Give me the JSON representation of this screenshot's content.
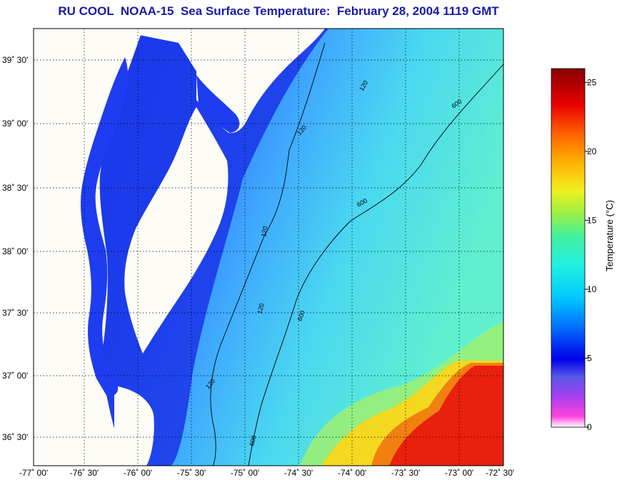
{
  "title": "RU COOL  NOAA-15  Sea Surface Temperature:  February 28, 2004 1119 GMT",
  "map": {
    "lat_labels": [
      "39˚ 30'",
      "39˚ 00'",
      "38˚ 30'",
      "38˚ 00'",
      "37˚ 30'",
      "37˚ 00'",
      "36˚ 30'"
    ],
    "lon_labels": [
      "-77˚ 00'",
      "-76˚ 30'",
      "-76˚ 00'",
      "-75˚ 30'",
      "-75˚ 00'",
      "-74˚ 30'",
      "-74˚ 00'",
      "-73˚ 30'",
      "-73˚ 00'",
      "-72˚ 30'"
    ],
    "contours": [
      "120",
      "600"
    ],
    "colors": {
      "land": "#fdfcf7",
      "cold": "#1e3cf0",
      "cool": "#2f8dff",
      "mild": "#4ee6e2",
      "warm": "#f2e82a",
      "hot": "#e61d0d"
    }
  },
  "colorbar": {
    "label": "Temperature (°C)",
    "ticks": [
      "0",
      "5",
      "10",
      "15",
      "20",
      "25"
    ],
    "range": [
      0,
      26
    ]
  }
}
